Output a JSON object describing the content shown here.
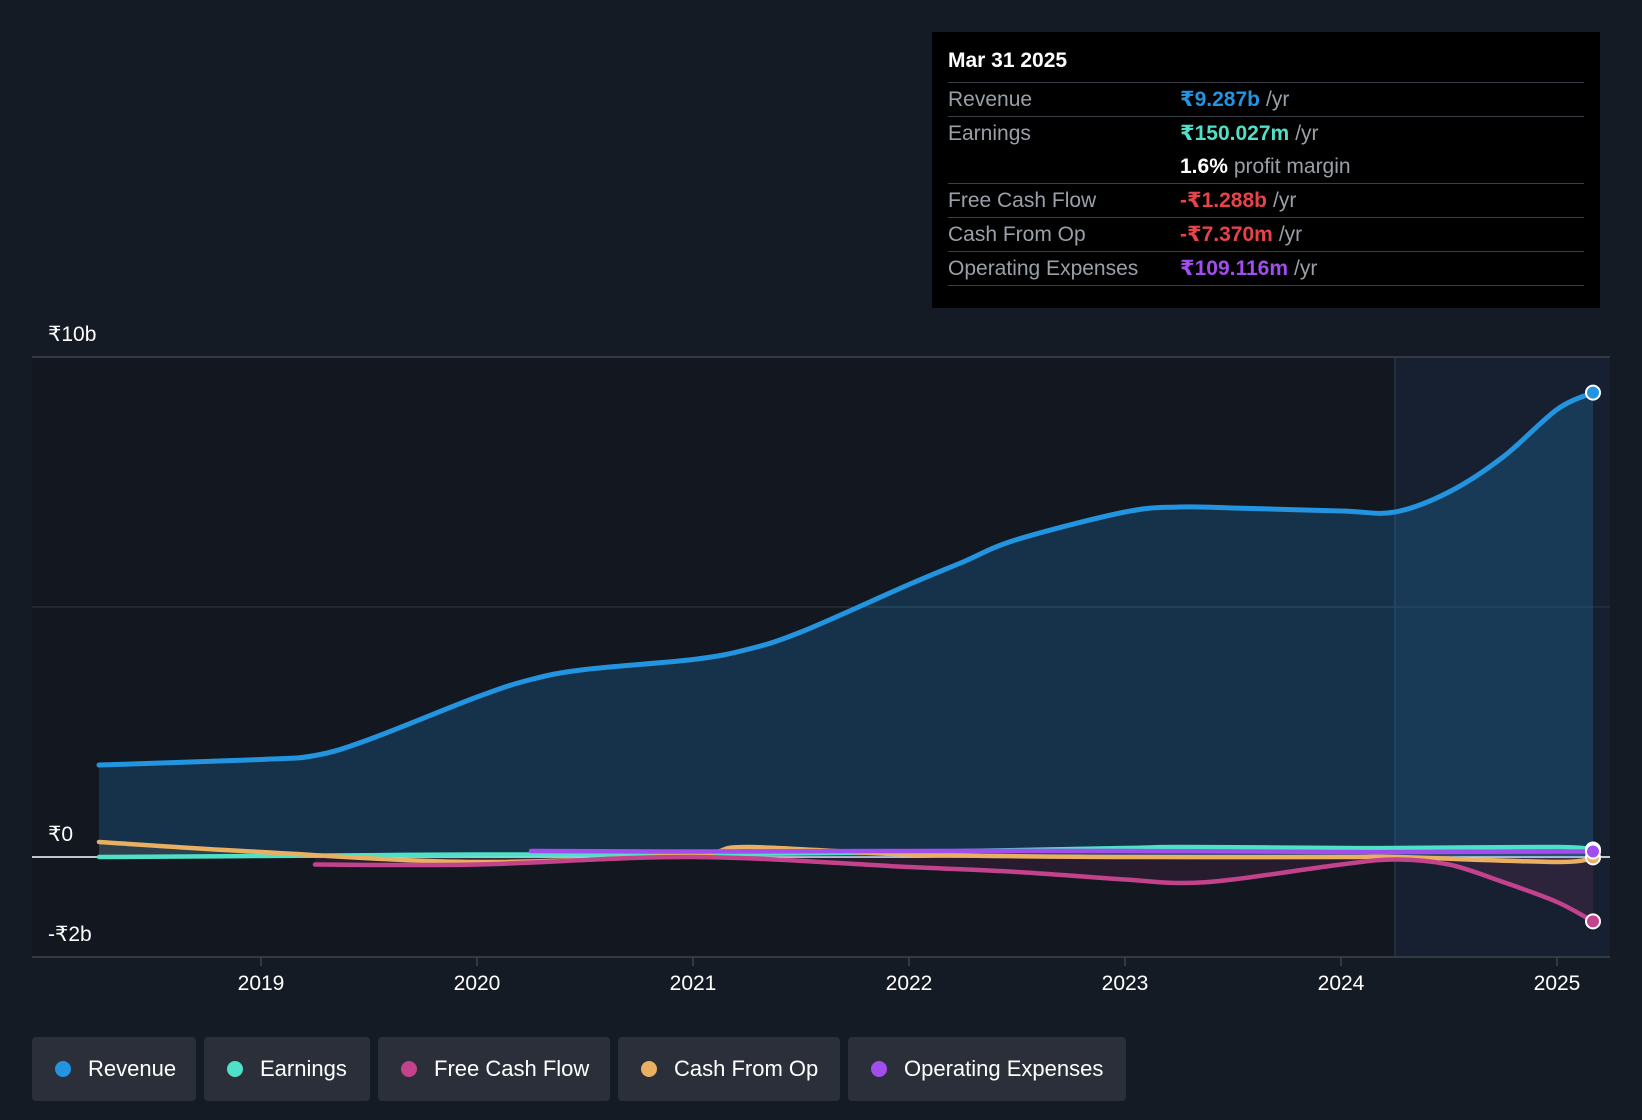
{
  "chart_data": {
    "type": "area",
    "x_label_ticks": [
      "2019",
      "2020",
      "2021",
      "2022",
      "2023",
      "2024",
      "2025"
    ],
    "x_ticks_years": [
      2019,
      2020,
      2021,
      2022,
      2023,
      2024,
      2025
    ],
    "y_ticks": [
      {
        "value": 10,
        "label": "₹10b"
      },
      {
        "value": 0,
        "label": "₹0"
      },
      {
        "value": -2,
        "label": "-₹2b"
      }
    ],
    "ylim": [
      -2,
      10
    ],
    "x_range": [
      "2018-01",
      "2025-03"
    ],
    "unit": "₹ billions",
    "grid": true,
    "highlight_from": "2024-04",
    "series": [
      {
        "name": "Revenue",
        "color": "#2394df",
        "x": [
          "2018-04",
          "2019-01",
          "2019-04",
          "2019-07",
          "2020-01",
          "2020-04",
          "2020-07",
          "2021-01",
          "2021-04",
          "2021-07",
          "2022-01",
          "2022-04",
          "2022-07",
          "2023-01",
          "2023-04",
          "2023-07",
          "2024-01",
          "2024-04",
          "2024-07",
          "2024-10",
          "2025-01",
          "2025-03"
        ],
        "values": [
          1.84,
          1.95,
          2.03,
          2.35,
          3.2,
          3.55,
          3.75,
          3.95,
          4.15,
          4.5,
          5.45,
          5.9,
          6.35,
          6.9,
          7.0,
          6.98,
          6.92,
          6.9,
          7.3,
          8.0,
          8.95,
          9.287
        ]
      },
      {
        "name": "Earnings",
        "color": "#4fe0c8",
        "x": [
          "2018-04",
          "2019-01",
          "2020-01",
          "2021-01",
          "2022-01",
          "2023-01",
          "2023-04",
          "2024-01",
          "2024-04",
          "2025-01",
          "2025-03"
        ],
        "values": [
          0.0,
          0.02,
          0.05,
          0.05,
          0.1,
          0.18,
          0.2,
          0.18,
          0.18,
          0.2,
          0.15
        ]
      },
      {
        "name": "Free Cash Flow",
        "color": "#c3428c",
        "x": [
          "2019-04",
          "2020-01",
          "2021-01",
          "2022-01",
          "2022-07",
          "2023-01",
          "2023-04",
          "2023-07",
          "2024-01",
          "2024-04",
          "2024-07",
          "2024-10",
          "2025-01",
          "2025-03"
        ],
        "values": [
          -0.15,
          -0.15,
          0.0,
          -0.2,
          -0.3,
          -0.45,
          -0.52,
          -0.45,
          -0.15,
          -0.05,
          -0.15,
          -0.5,
          -0.9,
          -1.288
        ]
      },
      {
        "name": "Cash From Op",
        "color": "#e8b060",
        "x": [
          "2018-04",
          "2019-01",
          "2020-01",
          "2021-01",
          "2021-04",
          "2022-01",
          "2023-01",
          "2024-01",
          "2024-04",
          "2025-01",
          "2025-03"
        ],
        "values": [
          0.3,
          0.1,
          -0.1,
          0.05,
          0.2,
          0.05,
          0.0,
          0.0,
          0.0,
          -0.1,
          -0.007
        ]
      },
      {
        "name": "Operating Expenses",
        "color": "#a24ded",
        "x": [
          "2020-04",
          "2021-01",
          "2022-01",
          "2023-01",
          "2024-01",
          "2024-04",
          "2025-01",
          "2025-03"
        ],
        "values": [
          0.12,
          0.11,
          0.12,
          0.12,
          0.1,
          0.1,
          0.11,
          0.109
        ]
      }
    ]
  },
  "tooltip": {
    "date": "Mar 31 2025",
    "rows": [
      {
        "label": "Revenue",
        "value": "₹9.287b",
        "unit": "/yr",
        "color": "#2394df"
      },
      {
        "label": "Earnings",
        "value": "₹150.027m",
        "unit": "/yr",
        "color": "#4fe0c8"
      },
      {
        "label": "",
        "value": "1.6%",
        "unit": "profit margin",
        "color": "#ffffff"
      },
      {
        "label": "Free Cash Flow",
        "value": "-₹1.288b",
        "unit": "/yr",
        "color": "#e8434b"
      },
      {
        "label": "Cash From Op",
        "value": "-₹7.370m",
        "unit": "/yr",
        "color": "#e8434b"
      },
      {
        "label": "Operating Expenses",
        "value": "₹109.116m",
        "unit": "/yr",
        "color": "#a24ded"
      }
    ]
  },
  "legend": [
    {
      "label": "Revenue",
      "color": "#2394df"
    },
    {
      "label": "Earnings",
      "color": "#4fe0c8"
    },
    {
      "label": "Free Cash Flow",
      "color": "#c3428c"
    },
    {
      "label": "Cash From Op",
      "color": "#e8b060"
    },
    {
      "label": "Operating Expenses",
      "color": "#a24ded"
    }
  ]
}
